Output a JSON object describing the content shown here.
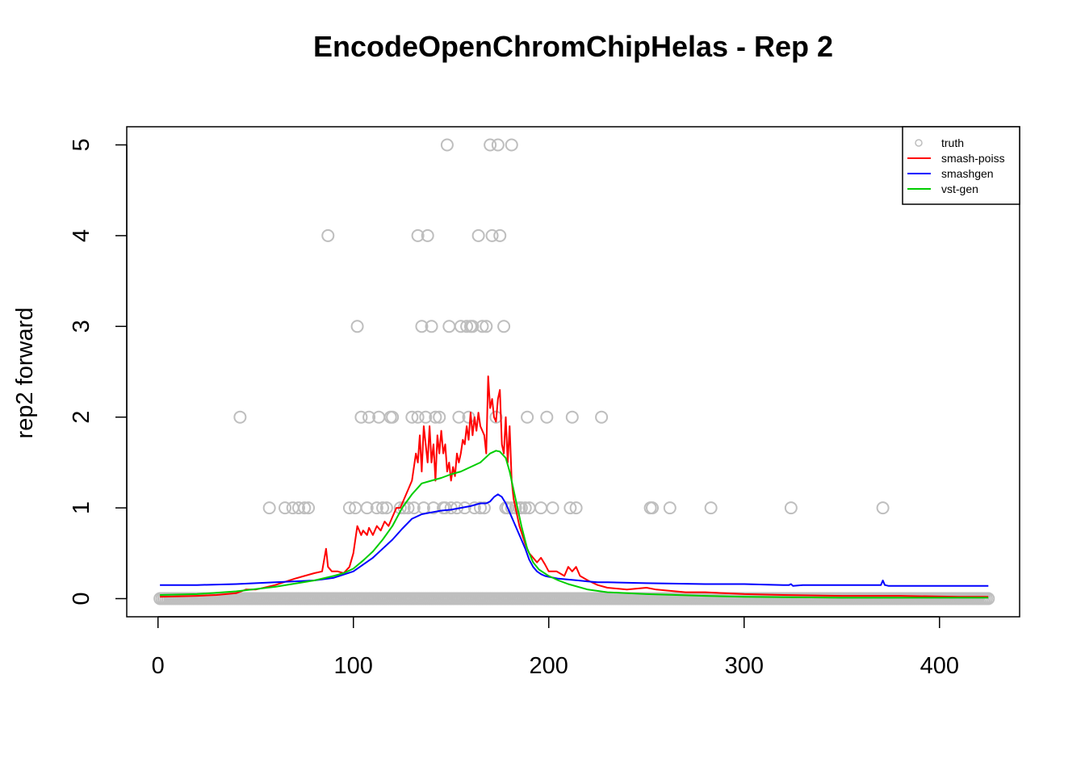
{
  "chart_data": {
    "type": "scatter",
    "title": "EncodeOpenChromChipHelas - Rep 2",
    "xlabel": "",
    "ylabel": "rep2 forward",
    "xlim": [
      -16,
      441
    ],
    "ylim": [
      -0.2,
      5.2
    ],
    "x_ticks": [
      0,
      100,
      200,
      300,
      400
    ],
    "y_ticks": [
      0,
      1,
      2,
      3,
      4,
      5
    ],
    "grid": false,
    "legend_position": "top-right",
    "colors": {
      "truth": "#bebebe",
      "smash-poiss": "#ff0000",
      "smashgen": "#0000ff",
      "vst-gen": "#00cd00"
    },
    "legend": [
      {
        "label": "truth",
        "kind": "point",
        "color": "#bebebe"
      },
      {
        "label": "smash-poiss",
        "kind": "line",
        "color": "#ff0000"
      },
      {
        "label": "smashgen",
        "kind": "line",
        "color": "#0000ff"
      },
      {
        "label": "vst-gen",
        "kind": "line",
        "color": "#00cd00"
      }
    ],
    "points_nonzero": [
      {
        "x": 42,
        "y": 2
      },
      {
        "x": 57,
        "y": 1
      },
      {
        "x": 65,
        "y": 1
      },
      {
        "x": 69,
        "y": 1
      },
      {
        "x": 72,
        "y": 1
      },
      {
        "x": 75,
        "y": 1
      },
      {
        "x": 77,
        "y": 1
      },
      {
        "x": 87,
        "y": 4
      },
      {
        "x": 98,
        "y": 1
      },
      {
        "x": 101,
        "y": 1
      },
      {
        "x": 102,
        "y": 3
      },
      {
        "x": 104,
        "y": 2
      },
      {
        "x": 107,
        "y": 1
      },
      {
        "x": 108,
        "y": 2
      },
      {
        "x": 112,
        "y": 1
      },
      {
        "x": 113,
        "y": 2
      },
      {
        "x": 115,
        "y": 1
      },
      {
        "x": 117,
        "y": 1
      },
      {
        "x": 119,
        "y": 2
      },
      {
        "x": 120,
        "y": 2
      },
      {
        "x": 124,
        "y": 1
      },
      {
        "x": 126,
        "y": 1
      },
      {
        "x": 128,
        "y": 1
      },
      {
        "x": 130,
        "y": 2
      },
      {
        "x": 131,
        "y": 1
      },
      {
        "x": 133,
        "y": 2
      },
      {
        "x": 133,
        "y": 4
      },
      {
        "x": 135,
        "y": 3
      },
      {
        "x": 136,
        "y": 1
      },
      {
        "x": 137,
        "y": 2
      },
      {
        "x": 138,
        "y": 4
      },
      {
        "x": 140,
        "y": 3
      },
      {
        "x": 141,
        "y": 1
      },
      {
        "x": 142,
        "y": 2
      },
      {
        "x": 144,
        "y": 2
      },
      {
        "x": 146,
        "y": 1
      },
      {
        "x": 147,
        "y": 1
      },
      {
        "x": 148,
        "y": 5
      },
      {
        "x": 149,
        "y": 3
      },
      {
        "x": 150,
        "y": 1
      },
      {
        "x": 153,
        "y": 1
      },
      {
        "x": 154,
        "y": 2
      },
      {
        "x": 155,
        "y": 3
      },
      {
        "x": 157,
        "y": 1
      },
      {
        "x": 158,
        "y": 3
      },
      {
        "x": 159,
        "y": 2
      },
      {
        "x": 160,
        "y": 3
      },
      {
        "x": 161,
        "y": 3
      },
      {
        "x": 162,
        "y": 1
      },
      {
        "x": 164,
        "y": 4
      },
      {
        "x": 165,
        "y": 1
      },
      {
        "x": 166,
        "y": 3
      },
      {
        "x": 167,
        "y": 1
      },
      {
        "x": 168,
        "y": 3
      },
      {
        "x": 170,
        "y": 5
      },
      {
        "x": 171,
        "y": 4
      },
      {
        "x": 173,
        "y": 2
      },
      {
        "x": 174,
        "y": 5
      },
      {
        "x": 175,
        "y": 4
      },
      {
        "x": 177,
        "y": 3
      },
      {
        "x": 178,
        "y": 1
      },
      {
        "x": 179,
        "y": 1
      },
      {
        "x": 181,
        "y": 5
      },
      {
        "x": 181,
        "y": 1
      },
      {
        "x": 183,
        "y": 1
      },
      {
        "x": 185,
        "y": 1
      },
      {
        "x": 186,
        "y": 1
      },
      {
        "x": 188,
        "y": 1
      },
      {
        "x": 189,
        "y": 2
      },
      {
        "x": 190,
        "y": 1
      },
      {
        "x": 196,
        "y": 1
      },
      {
        "x": 199,
        "y": 2
      },
      {
        "x": 202,
        "y": 1
      },
      {
        "x": 211,
        "y": 1
      },
      {
        "x": 212,
        "y": 2
      },
      {
        "x": 214,
        "y": 1
      },
      {
        "x": 227,
        "y": 2
      },
      {
        "x": 252,
        "y": 1
      },
      {
        "x": 253,
        "y": 1
      },
      {
        "x": 262,
        "y": 1
      },
      {
        "x": 283,
        "y": 1
      },
      {
        "x": 324,
        "y": 1
      },
      {
        "x": 371,
        "y": 1
      }
    ],
    "points_zero_x": {
      "from": 1,
      "to": 425,
      "y": 0
    },
    "series": [
      {
        "name": "smash-poiss",
        "x": [
          1,
          20,
          30,
          40,
          45,
          50,
          60,
          70,
          75,
          80,
          84,
          86,
          87,
          89,
          92,
          95,
          98,
          100,
          102,
          104,
          105,
          107,
          108,
          110,
          112,
          114,
          116,
          118,
          120,
          122,
          124,
          126,
          128,
          130,
          132,
          133,
          134,
          135,
          136,
          137,
          138,
          139,
          140,
          141,
          142,
          143,
          144,
          145,
          146,
          147,
          148,
          149,
          150,
          151,
          152,
          153,
          154,
          155,
          156,
          157,
          158,
          159,
          160,
          161,
          162,
          163,
          164,
          165,
          166,
          167,
          168,
          169,
          170,
          171,
          172,
          173,
          174,
          175,
          176,
          177,
          178,
          179,
          180,
          181,
          182,
          183,
          185,
          188,
          190,
          192,
          194,
          196,
          198,
          200,
          204,
          208,
          210,
          212,
          214,
          216,
          220,
          225,
          230,
          240,
          250,
          255,
          260,
          270,
          280,
          290,
          300,
          320,
          350,
          380,
          410,
          425
        ],
        "values": [
          0.02,
          0.03,
          0.04,
          0.06,
          0.1,
          0.1,
          0.15,
          0.22,
          0.25,
          0.28,
          0.3,
          0.55,
          0.35,
          0.3,
          0.3,
          0.28,
          0.35,
          0.5,
          0.8,
          0.7,
          0.75,
          0.7,
          0.78,
          0.7,
          0.8,
          0.75,
          0.85,
          0.8,
          0.9,
          1.0,
          1.0,
          1.1,
          1.2,
          1.3,
          1.6,
          1.5,
          1.8,
          1.4,
          1.9,
          1.7,
          1.5,
          1.9,
          1.5,
          1.7,
          1.3,
          1.8,
          1.6,
          1.85,
          1.6,
          1.7,
          1.4,
          1.5,
          1.3,
          1.45,
          1.35,
          1.6,
          1.5,
          1.6,
          1.75,
          1.7,
          1.9,
          1.75,
          2.05,
          1.8,
          2.0,
          1.85,
          2.05,
          1.9,
          1.85,
          1.8,
          1.6,
          2.45,
          2.1,
          2.2,
          2.0,
          1.95,
          2.2,
          2.3,
          1.7,
          1.6,
          2.0,
          1.5,
          1.9,
          1.3,
          1.1,
          1.0,
          0.8,
          0.6,
          0.5,
          0.45,
          0.4,
          0.45,
          0.38,
          0.3,
          0.3,
          0.25,
          0.35,
          0.3,
          0.35,
          0.25,
          0.2,
          0.15,
          0.12,
          0.1,
          0.12,
          0.1,
          0.09,
          0.07,
          0.07,
          0.06,
          0.05,
          0.04,
          0.03,
          0.03,
          0.02,
          0.02
        ]
      },
      {
        "name": "smashgen",
        "x": [
          1,
          20,
          40,
          60,
          80,
          90,
          100,
          110,
          115,
          120,
          125,
          130,
          135,
          140,
          145,
          150,
          155,
          160,
          165,
          168,
          170,
          172,
          174,
          176,
          178,
          180,
          183,
          186,
          188,
          190,
          192,
          194,
          196,
          198,
          200,
          205,
          210,
          215,
          220,
          225,
          230,
          250,
          280,
          300,
          320,
          323,
          324,
          325,
          330,
          350,
          368,
          370,
          371,
          372,
          374,
          380,
          400,
          425
        ],
        "values": [
          0.15,
          0.15,
          0.16,
          0.18,
          0.2,
          0.23,
          0.3,
          0.45,
          0.55,
          0.65,
          0.77,
          0.88,
          0.93,
          0.95,
          0.97,
          0.98,
          1.0,
          1.02,
          1.05,
          1.05,
          1.07,
          1.12,
          1.15,
          1.12,
          1.05,
          0.95,
          0.8,
          0.65,
          0.55,
          0.43,
          0.35,
          0.3,
          0.27,
          0.25,
          0.24,
          0.22,
          0.21,
          0.2,
          0.19,
          0.18,
          0.18,
          0.17,
          0.16,
          0.16,
          0.15,
          0.15,
          0.16,
          0.14,
          0.15,
          0.15,
          0.15,
          0.15,
          0.2,
          0.15,
          0.14,
          0.14,
          0.14,
          0.14
        ]
      },
      {
        "name": "vst-gen",
        "x": [
          1,
          20,
          40,
          60,
          80,
          90,
          95,
          100,
          105,
          110,
          115,
          120,
          125,
          130,
          135,
          140,
          145,
          150,
          155,
          160,
          165,
          170,
          173,
          175,
          178,
          180,
          183,
          186,
          189,
          192,
          195,
          200,
          205,
          210,
          220,
          230,
          250,
          280,
          300,
          350,
          400,
          425
        ],
        "values": [
          0.04,
          0.05,
          0.08,
          0.13,
          0.2,
          0.25,
          0.28,
          0.33,
          0.42,
          0.52,
          0.65,
          0.8,
          1.0,
          1.15,
          1.27,
          1.3,
          1.33,
          1.37,
          1.4,
          1.45,
          1.5,
          1.6,
          1.63,
          1.62,
          1.55,
          1.4,
          1.1,
          0.8,
          0.55,
          0.4,
          0.32,
          0.25,
          0.2,
          0.16,
          0.1,
          0.07,
          0.05,
          0.03,
          0.02,
          0.01,
          0.01,
          0.01
        ]
      }
    ]
  }
}
